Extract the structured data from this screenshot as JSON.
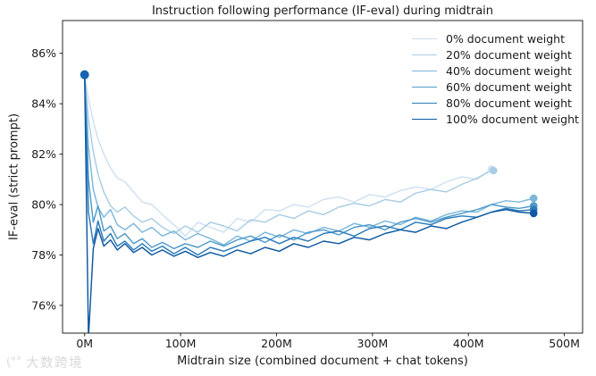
{
  "chart_data": {
    "type": "line",
    "title": "Instruction following performance (IF-eval) during midtrain",
    "xlabel": "Midtrain size (combined document + chat tokens)",
    "ylabel": "IF-eval (strict prompt)",
    "grid": false,
    "legend_position": "upper right",
    "xlim": [
      -23,
      519
    ],
    "ylim": [
      74.9,
      87.3
    ],
    "x_tick_values": [
      0,
      100,
      200,
      300,
      400,
      500
    ],
    "x_tick_labels": [
      "0M",
      "100M",
      "200M",
      "300M",
      "400M",
      "500M"
    ],
    "y_tick_values": [
      76,
      78,
      80,
      82,
      84,
      86
    ],
    "y_tick_labels": [
      "76%",
      "78%",
      "80%",
      "82%",
      "84%",
      "86%"
    ],
    "x_unit": "millions of tokens",
    "start_marker": {
      "x": 0,
      "y": 85.15,
      "color": "#1565b0"
    },
    "series": [
      {
        "name": "0% document weight",
        "color": "#cfe0f1",
        "end_marker": {
          "x": 424,
          "y": 81.4
        },
        "x": [
          0,
          4,
          9,
          14,
          20,
          27,
          34,
          42,
          51,
          60,
          70,
          81,
          93,
          105,
          118,
          131,
          145,
          159,
          173,
          188,
          203,
          218,
          233,
          249,
          265,
          281,
          297,
          313,
          329,
          345,
          361,
          377,
          393,
          409,
          424
        ],
        "y": [
          85.15,
          84.2,
          83.3,
          82.6,
          82.0,
          81.45,
          81.05,
          80.9,
          80.5,
          80.1,
          80.0,
          79.6,
          79.2,
          78.75,
          79.3,
          79.1,
          78.9,
          79.45,
          79.3,
          79.8,
          79.75,
          80.0,
          79.9,
          80.2,
          80.3,
          80.1,
          80.4,
          80.3,
          80.55,
          80.7,
          80.6,
          80.9,
          81.1,
          81.0,
          81.4
        ]
      },
      {
        "name": "20% document weight",
        "color": "#a8cde4",
        "end_marker": {
          "x": 426,
          "y": 81.35
        },
        "x": [
          0,
          4,
          9,
          14,
          20,
          27,
          34,
          42,
          51,
          60,
          70,
          81,
          93,
          105,
          118,
          131,
          145,
          159,
          173,
          188,
          203,
          218,
          233,
          249,
          265,
          281,
          297,
          313,
          329,
          345,
          361,
          377,
          393,
          409,
          424
        ],
        "y": [
          85.15,
          83.4,
          82.1,
          81.2,
          80.5,
          79.95,
          79.7,
          79.9,
          79.55,
          79.3,
          79.45,
          79.1,
          78.85,
          79.15,
          78.9,
          79.3,
          79.15,
          78.95,
          79.4,
          79.3,
          79.6,
          79.45,
          79.75,
          79.6,
          79.9,
          80.05,
          79.95,
          80.2,
          80.1,
          80.45,
          80.6,
          80.5,
          80.8,
          81.05,
          81.35
        ]
      },
      {
        "name": "40% document weight",
        "color": "#7cb7da",
        "end_marker": {
          "x": 468,
          "y": 80.25
        },
        "x": [
          0,
          4,
          9,
          14,
          20,
          27,
          34,
          42,
          51,
          60,
          70,
          81,
          93,
          105,
          118,
          131,
          145,
          159,
          173,
          188,
          203,
          218,
          233,
          249,
          265,
          281,
          297,
          313,
          329,
          345,
          361,
          377,
          393,
          409,
          424,
          439,
          453,
          468
        ],
        "y": [
          85.15,
          82.3,
          80.6,
          79.9,
          79.5,
          79.8,
          79.2,
          79.0,
          79.25,
          78.9,
          79.1,
          78.75,
          78.95,
          78.6,
          78.85,
          78.65,
          78.4,
          78.75,
          78.55,
          78.9,
          78.7,
          79.0,
          78.85,
          79.1,
          78.95,
          79.25,
          79.1,
          79.35,
          79.2,
          79.5,
          79.35,
          79.6,
          79.75,
          79.7,
          80.0,
          80.15,
          80.1,
          80.25
        ]
      },
      {
        "name": "60% document weight",
        "color": "#4f9bcb",
        "end_marker": {
          "x": 468,
          "y": 79.95
        },
        "x": [
          0,
          4,
          9,
          14,
          20,
          27,
          34,
          42,
          51,
          60,
          70,
          81,
          93,
          105,
          118,
          131,
          145,
          159,
          173,
          188,
          203,
          218,
          233,
          249,
          265,
          281,
          297,
          313,
          329,
          345,
          361,
          377,
          393,
          409,
          424,
          439,
          453,
          468
        ],
        "y": [
          85.15,
          81.0,
          79.3,
          79.95,
          78.95,
          79.15,
          78.65,
          78.85,
          78.45,
          78.65,
          78.3,
          78.5,
          78.25,
          78.45,
          78.3,
          78.55,
          78.35,
          78.6,
          78.75,
          78.5,
          78.8,
          78.6,
          78.9,
          79.0,
          78.8,
          79.1,
          79.2,
          79.0,
          79.3,
          79.45,
          79.3,
          79.5,
          79.65,
          79.8,
          80.0,
          79.9,
          79.85,
          79.95
        ]
      },
      {
        "name": "80% document weight",
        "color": "#2b7cba",
        "end_marker": {
          "x": 468,
          "y": 79.8
        },
        "x": [
          0,
          4,
          9,
          14,
          20,
          27,
          34,
          42,
          51,
          60,
          70,
          81,
          93,
          105,
          118,
          131,
          145,
          159,
          173,
          188,
          203,
          218,
          233,
          249,
          265,
          281,
          297,
          313,
          329,
          345,
          361,
          377,
          393,
          409,
          424,
          439,
          453,
          468
        ],
        "y": [
          85.15,
          79.7,
          78.45,
          79.35,
          78.55,
          78.85,
          78.35,
          78.55,
          78.2,
          78.45,
          78.15,
          78.35,
          78.05,
          78.3,
          78.0,
          78.3,
          78.15,
          78.35,
          78.55,
          78.7,
          78.45,
          78.7,
          78.55,
          78.85,
          78.95,
          78.75,
          79.05,
          79.15,
          79.0,
          79.3,
          79.2,
          79.45,
          79.55,
          79.5,
          79.7,
          79.85,
          79.75,
          79.8
        ]
      },
      {
        "name": "100% document weight",
        "color": "#0e59a2",
        "end_marker": {
          "x": 468,
          "y": 79.65
        },
        "x": [
          0,
          4,
          9,
          14,
          20,
          27,
          34,
          42,
          51,
          60,
          70,
          81,
          93,
          105,
          118,
          131,
          145,
          159,
          173,
          188,
          203,
          218,
          233,
          249,
          265,
          281,
          297,
          313,
          329,
          345,
          361,
          377,
          393,
          409,
          424,
          439,
          453,
          468
        ],
        "y": [
          85.15,
          74.7,
          78.25,
          79.05,
          78.35,
          78.6,
          78.2,
          78.45,
          78.1,
          78.3,
          78.0,
          78.2,
          77.95,
          78.15,
          77.9,
          78.1,
          77.95,
          78.2,
          78.05,
          78.3,
          78.15,
          78.45,
          78.3,
          78.55,
          78.45,
          78.7,
          78.6,
          78.85,
          79.0,
          78.9,
          79.15,
          79.05,
          79.3,
          79.5,
          79.7,
          79.8,
          79.7,
          79.65
        ]
      }
    ]
  },
  "watermark": {
    "logo_glyph": "(°°",
    "text": "大数跨境"
  },
  "style": {
    "axis_color": "#262626",
    "text_color": "#1a1a1a",
    "background": "#ffffff"
  }
}
